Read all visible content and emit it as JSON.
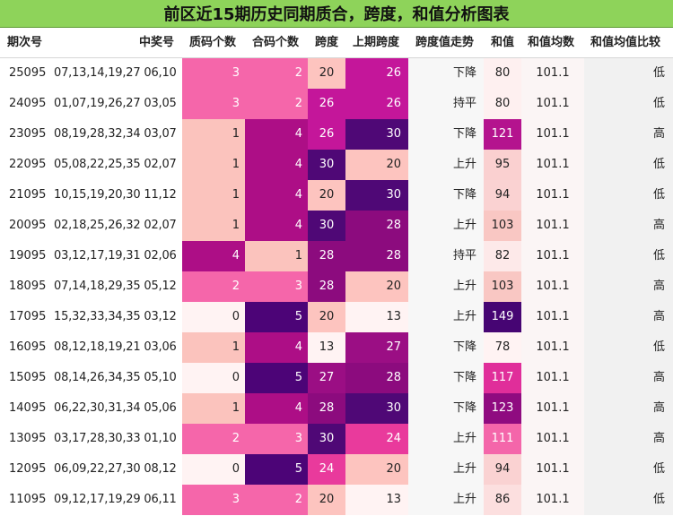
{
  "title": "前区近15期历史同期质合，跨度，和值分析图表",
  "columns": [
    "期次号",
    "中奖号",
    "质码个数",
    "合码个数",
    "跨度",
    "上期跨度",
    "跨度值走势",
    "和值",
    "和值均数",
    "和值均值比较"
  ],
  "rows": [
    {
      "issue": "25095",
      "numbers": "07,13,14,19,27 06,10",
      "prime": "3",
      "composite": "2",
      "span": "20",
      "prev_span": "26",
      "trend": "下降",
      "sum": "80",
      "avg": "101.1",
      "compare": "低"
    },
    {
      "issue": "24095",
      "numbers": "01,07,19,26,27 03,05",
      "prime": "3",
      "composite": "2",
      "span": "26",
      "prev_span": "26",
      "trend": "持平",
      "sum": "80",
      "avg": "101.1",
      "compare": "低"
    },
    {
      "issue": "23095",
      "numbers": "08,19,28,32,34 03,07",
      "prime": "1",
      "composite": "4",
      "span": "26",
      "prev_span": "30",
      "trend": "下降",
      "sum": "121",
      "avg": "101.1",
      "compare": "高"
    },
    {
      "issue": "22095",
      "numbers": "05,08,22,25,35 02,07",
      "prime": "1",
      "composite": "4",
      "span": "30",
      "prev_span": "20",
      "trend": "上升",
      "sum": "95",
      "avg": "101.1",
      "compare": "低"
    },
    {
      "issue": "21095",
      "numbers": "10,15,19,20,30 11,12",
      "prime": "1",
      "composite": "4",
      "span": "20",
      "prev_span": "30",
      "trend": "下降",
      "sum": "94",
      "avg": "101.1",
      "compare": "低"
    },
    {
      "issue": "20095",
      "numbers": "02,18,25,26,32 02,07",
      "prime": "1",
      "composite": "4",
      "span": "30",
      "prev_span": "28",
      "trend": "上升",
      "sum": "103",
      "avg": "101.1",
      "compare": "高"
    },
    {
      "issue": "19095",
      "numbers": "03,12,17,19,31 02,06",
      "prime": "4",
      "composite": "1",
      "span": "28",
      "prev_span": "28",
      "trend": "持平",
      "sum": "82",
      "avg": "101.1",
      "compare": "低"
    },
    {
      "issue": "18095",
      "numbers": "07,14,18,29,35 05,12",
      "prime": "2",
      "composite": "3",
      "span": "28",
      "prev_span": "20",
      "trend": "上升",
      "sum": "103",
      "avg": "101.1",
      "compare": "高"
    },
    {
      "issue": "17095",
      "numbers": "15,32,33,34,35 03,12",
      "prime": "0",
      "composite": "5",
      "span": "20",
      "prev_span": "13",
      "trend": "上升",
      "sum": "149",
      "avg": "101.1",
      "compare": "高"
    },
    {
      "issue": "16095",
      "numbers": "08,12,18,19,21 03,06",
      "prime": "1",
      "composite": "4",
      "span": "13",
      "prev_span": "27",
      "trend": "下降",
      "sum": "78",
      "avg": "101.1",
      "compare": "低"
    },
    {
      "issue": "15095",
      "numbers": "08,14,26,34,35 05,10",
      "prime": "0",
      "composite": "5",
      "span": "27",
      "prev_span": "28",
      "trend": "下降",
      "sum": "117",
      "avg": "101.1",
      "compare": "高"
    },
    {
      "issue": "14095",
      "numbers": "06,22,30,31,34 05,06",
      "prime": "1",
      "composite": "4",
      "span": "28",
      "prev_span": "30",
      "trend": "下降",
      "sum": "123",
      "avg": "101.1",
      "compare": "高"
    },
    {
      "issue": "13095",
      "numbers": "03,17,28,30,33 01,10",
      "prime": "2",
      "composite": "3",
      "span": "30",
      "prev_span": "24",
      "trend": "上升",
      "sum": "111",
      "avg": "101.1",
      "compare": "高"
    },
    {
      "issue": "12095",
      "numbers": "06,09,22,27,30 08,12",
      "prime": "0",
      "composite": "5",
      "span": "24",
      "prev_span": "20",
      "trend": "上升",
      "sum": "94",
      "avg": "101.1",
      "compare": "低"
    },
    {
      "issue": "11095",
      "numbers": "09,12,17,19,29 06,11",
      "prime": "3",
      "composite": "2",
      "span": "20",
      "prev_span": "13",
      "trend": "上升",
      "sum": "86",
      "avg": "101.1",
      "compare": "低"
    }
  ],
  "colors": {
    "title_bg": "#8ed35a",
    "count_scale": {
      "0": "#fff3f3",
      "1": "#fbc3bd",
      "2": "#f566aa",
      "3": "#f566aa",
      "4": "#ad0e86",
      "5": "#4c0477"
    },
    "span_scale": {
      "13": "#fff3f3",
      "20": "#fdc4bf",
      "24": "#e93a9c",
      "26": "#c4169a",
      "27": "#9b0e84",
      "28": "#8c0b7e",
      "30": "#4f0876"
    },
    "sum_scale": {
      "78": "#fff3f3",
      "80": "#fef0f0",
      "82": "#fde9e9",
      "86": "#fcdfdf",
      "94": "#fad2d2",
      "95": "#fad0d0",
      "103": "#f9c7c3",
      "111": "#f466aa",
      "117": "#e02e9a",
      "121": "#b4138e",
      "123": "#8f0b80",
      "149": "#460573"
    },
    "cmp_bg": "#f1f1f1"
  }
}
